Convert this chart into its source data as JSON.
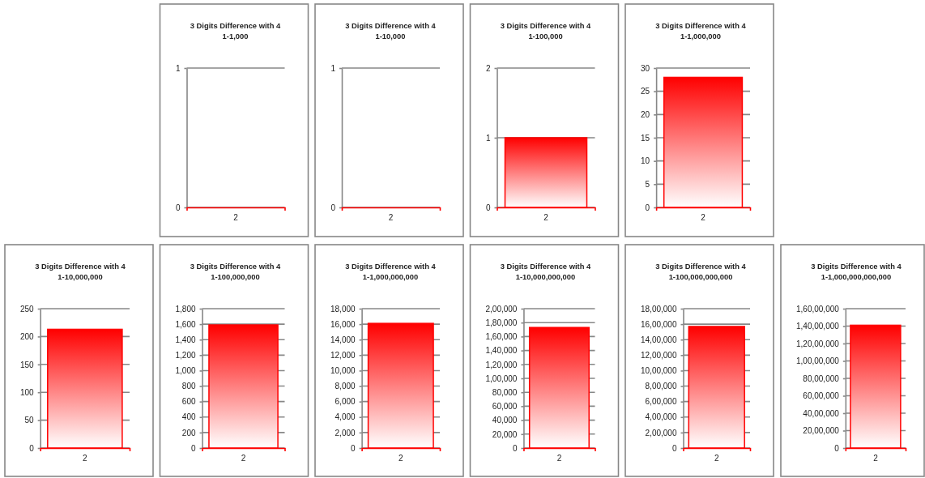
{
  "chart_data": [
    {
      "type": "bar",
      "title": "3 Digits Difference with 4",
      "subtitle": "1-1,000",
      "categories": [
        "2"
      ],
      "values": [
        0
      ],
      "color": "#ff0000",
      "ylim": [
        0,
        1
      ],
      "yticks": [
        0,
        1
      ],
      "grid": "y"
    },
    {
      "type": "bar",
      "title": "3 Digits Difference with 4",
      "subtitle": "1-10,000",
      "categories": [
        "2"
      ],
      "values": [
        0
      ],
      "color": "#ff0000",
      "ylim": [
        0,
        1
      ],
      "yticks": [
        0,
        1
      ],
      "grid": "y"
    },
    {
      "type": "bar",
      "title": "3 Digits Difference with 4",
      "subtitle": "1-100,000",
      "categories": [
        "2"
      ],
      "values": [
        1
      ],
      "color": "#ff0000",
      "ylim": [
        0,
        2
      ],
      "yticks": [
        0,
        1,
        2
      ],
      "grid": "y"
    },
    {
      "type": "bar",
      "title": "3 Digits Difference with 4",
      "subtitle": "1-1,000,000",
      "categories": [
        "2"
      ],
      "values": [
        28
      ],
      "color": "#ff0000",
      "ylim": [
        0,
        30
      ],
      "yticks": [
        0,
        5,
        10,
        15,
        20,
        25,
        30
      ],
      "grid": "y"
    },
    {
      "type": "bar",
      "title": "3 Digits Difference with 4",
      "subtitle": "1-10,000,000",
      "categories": [
        "2"
      ],
      "values": [
        213
      ],
      "color": "#ff0000",
      "ylim": [
        0,
        250
      ],
      "yticks": [
        0,
        50,
        100,
        150,
        200,
        250
      ],
      "grid": "y"
    },
    {
      "type": "bar",
      "title": "3 Digits Difference with 4",
      "subtitle": "1-100,000,000",
      "categories": [
        "2"
      ],
      "values": [
        1590
      ],
      "color": "#ff0000",
      "ylim": [
        0,
        1800
      ],
      "yticks": [
        0,
        200,
        400,
        600,
        800,
        {
          "value": 1000,
          "label": "1,000"
        },
        {
          "value": 1200,
          "label": "1,200"
        },
        {
          "value": 1400,
          "label": "1,400"
        },
        {
          "value": 1600,
          "label": "1,600"
        },
        {
          "value": 1800,
          "label": "1,800"
        }
      ],
      "grid": "y"
    },
    {
      "type": "bar",
      "title": "3 Digits Difference with 4",
      "subtitle": "1-1,000,000,000",
      "categories": [
        "2"
      ],
      "values": [
        16100
      ],
      "color": "#ff0000",
      "ylim": [
        0,
        18000
      ],
      "yticks": [
        0,
        {
          "value": 2000,
          "label": "2,000"
        },
        {
          "value": 4000,
          "label": "4,000"
        },
        {
          "value": 6000,
          "label": "6,000"
        },
        {
          "value": 8000,
          "label": "8,000"
        },
        {
          "value": 10000,
          "label": "10,000"
        },
        {
          "value": 12000,
          "label": "12,000"
        },
        {
          "value": 14000,
          "label": "14,000"
        },
        {
          "value": 16000,
          "label": "16,000"
        },
        {
          "value": 18000,
          "label": "18,000"
        }
      ],
      "grid": "y"
    },
    {
      "type": "bar",
      "title": "3 Digits Difference with 4",
      "subtitle": "1-10,000,000,000",
      "categories": [
        "2"
      ],
      "values": [
        173000
      ],
      "color": "#ff0000",
      "ylim": [
        0,
        200000
      ],
      "yticks": [
        0,
        {
          "value": 20000,
          "label": "20,000"
        },
        {
          "value": 40000,
          "label": "40,000"
        },
        {
          "value": 60000,
          "label": "60,000"
        },
        {
          "value": 80000,
          "label": "80,000"
        },
        {
          "value": 100000,
          "label": "1,00,000"
        },
        {
          "value": 120000,
          "label": "1,20,000"
        },
        {
          "value": 140000,
          "label": "1,40,000"
        },
        {
          "value": 160000,
          "label": "1,60,000"
        },
        {
          "value": 180000,
          "label": "1,80,000"
        },
        {
          "value": 200000,
          "label": "2,00,000"
        }
      ],
      "grid": "y"
    },
    {
      "type": "bar",
      "title": "3 Digits Difference with 4",
      "subtitle": "1-100,000,000,000",
      "categories": [
        "2"
      ],
      "values": [
        1570000
      ],
      "color": "#ff0000",
      "ylim": [
        0,
        1800000
      ],
      "yticks": [
        0,
        {
          "value": 200000,
          "label": "2,00,000"
        },
        {
          "value": 400000,
          "label": "4,00,000"
        },
        {
          "value": 600000,
          "label": "6,00,000"
        },
        {
          "value": 800000,
          "label": "8,00,000"
        },
        {
          "value": 1000000,
          "label": "10,00,000"
        },
        {
          "value": 1200000,
          "label": "12,00,000"
        },
        {
          "value": 1400000,
          "label": "14,00,000"
        },
        {
          "value": 1600000,
          "label": "16,00,000"
        },
        {
          "value": 1800000,
          "label": "18,00,000"
        }
      ],
      "grid": "y"
    },
    {
      "type": "bar",
      "title": "3 Digits Difference with 4",
      "subtitle": "1-1,000,000,000,000",
      "categories": [
        "2"
      ],
      "values": [
        14100000
      ],
      "color": "#ff0000",
      "ylim": [
        0,
        16000000
      ],
      "yticks": [
        0,
        {
          "value": 2000000,
          "label": "20,00,000"
        },
        {
          "value": 4000000,
          "label": "40,00,000"
        },
        {
          "value": 6000000,
          "label": "60,00,000"
        },
        {
          "value": 8000000,
          "label": "80,00,000"
        },
        {
          "value": 10000000,
          "label": "1,00,00,000"
        },
        {
          "value": 12000000,
          "label": "1,20,00,000"
        },
        {
          "value": 14000000,
          "label": "1,40,00,000"
        },
        {
          "value": 16000000,
          "label": "1,60,00,000"
        }
      ],
      "grid": "y"
    }
  ]
}
